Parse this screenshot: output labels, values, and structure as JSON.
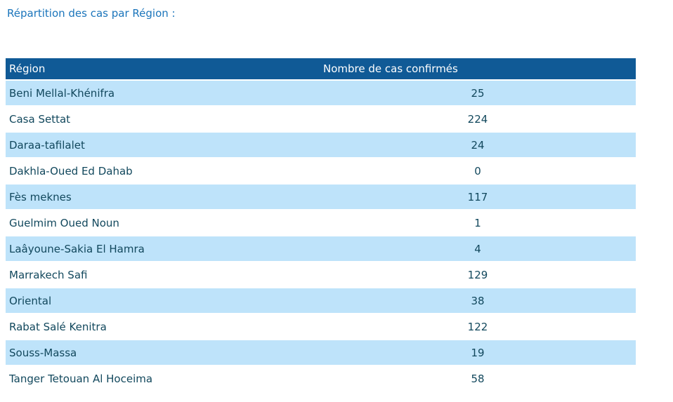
{
  "page_title": "Répartition des cas par Région :",
  "chart_data": {
    "type": "table",
    "title": "Répartition des cas par Région :",
    "columns": [
      "Région",
      "Nombre de cas confirmés"
    ],
    "rows": [
      [
        "Beni Mellal-Khénifra",
        25
      ],
      [
        "Casa Settat",
        224
      ],
      [
        "Daraa-tafilalet",
        24
      ],
      [
        "Dakhla-Oued Ed Dahab",
        0
      ],
      [
        "Fès meknes",
        117
      ],
      [
        "Guelmim Oued Noun",
        1
      ],
      [
        "Laâyoune-Sakia El Hamra",
        4
      ],
      [
        "Marrakech Safi",
        129
      ],
      [
        "Oriental",
        38
      ],
      [
        "Rabat Salé Kenitra",
        122
      ],
      [
        "Souss-Massa",
        19
      ],
      [
        "Tanger Tetouan Al Hoceima",
        58
      ]
    ],
    "layout": {
      "striped": true,
      "stripe_pattern": "odd-rows-light-blue",
      "region_column_align": "left",
      "cases_column_align": "center"
    }
  },
  "colors": {
    "title_text": "#1b75bb",
    "header_bg": "#105a96",
    "header_text": "#ffffff",
    "row_alt_bg": "#bee3fa",
    "row_bg": "#ffffff",
    "body_text": "#12485d"
  }
}
